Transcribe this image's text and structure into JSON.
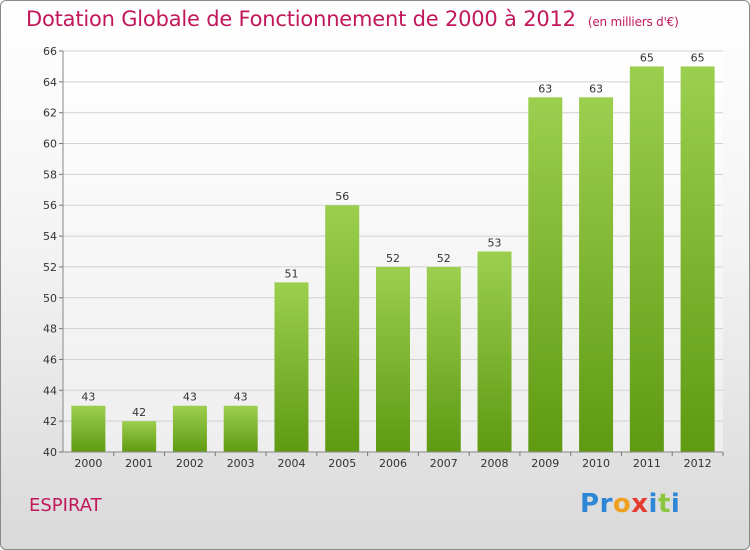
{
  "header": {
    "title": "Dotation Globale de Fonctionnement de 2000 à 2012",
    "unit": "(en milliers d'€)"
  },
  "footer": {
    "commune": "ESPIRAT",
    "logo": [
      {
        "char": "P",
        "color": "#2e86d6"
      },
      {
        "char": "r",
        "color": "#2e86d6"
      },
      {
        "char": "o",
        "color": "#f0a020"
      },
      {
        "char": "x",
        "color": "#e43c2e"
      },
      {
        "char": "i",
        "color": "#2e86d6"
      },
      {
        "char": "t",
        "color": "#8cc63f"
      },
      {
        "char": "i",
        "color": "#2e86d6"
      }
    ]
  },
  "chart_data": {
    "type": "bar",
    "title": "Dotation Globale de Fonctionnement de 2000 à 2012",
    "subtitle": "(en milliers d'€)",
    "categories": [
      "2000",
      "2001",
      "2002",
      "2003",
      "2004",
      "2005",
      "2006",
      "2007",
      "2008",
      "2009",
      "2010",
      "2011",
      "2012"
    ],
    "values": [
      43,
      42,
      43,
      43,
      51,
      56,
      52,
      52,
      53,
      63,
      63,
      65,
      65
    ],
    "ylim": [
      40,
      66
    ],
    "yticks": [
      40,
      42,
      44,
      46,
      48,
      50,
      52,
      54,
      56,
      58,
      60,
      62,
      64,
      66
    ],
    "grid": true,
    "bar_color_top": "#9ccf4f",
    "bar_color_bottom": "#5f9a12"
  }
}
